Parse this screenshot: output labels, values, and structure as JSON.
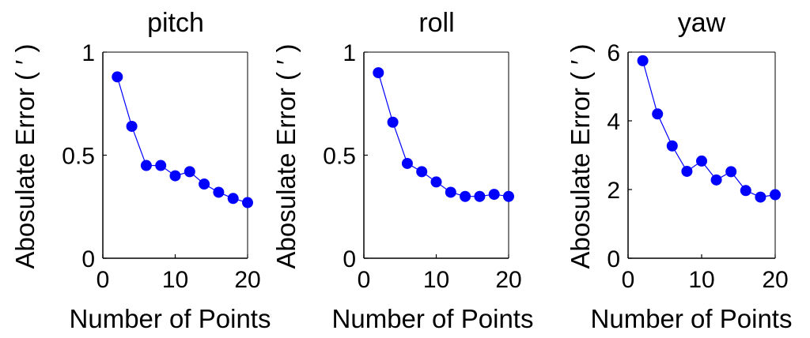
{
  "chart_data": [
    {
      "type": "line",
      "title": "pitch",
      "xlabel": "Number of Points",
      "ylabel": "Abosulate Error ( ′ )",
      "xlim": [
        0,
        20
      ],
      "ylim": [
        0,
        1
      ],
      "xticks": [
        0,
        10,
        20
      ],
      "yticks": [
        0,
        0.5,
        1
      ],
      "xtick_labels": [
        "0",
        "10",
        "20"
      ],
      "ytick_labels": [
        "0",
        "0.5",
        "1"
      ],
      "grid": false,
      "color": "#0000ff",
      "x": [
        2,
        4,
        6,
        8,
        10,
        12,
        14,
        16,
        18,
        20
      ],
      "y": [
        0.88,
        0.64,
        0.45,
        0.45,
        0.4,
        0.42,
        0.36,
        0.32,
        0.29,
        0.27
      ]
    },
    {
      "type": "line",
      "title": "roll",
      "xlabel": "Number of Points",
      "ylabel": "Abosulate Error ( ′ )",
      "xlim": [
        0,
        20
      ],
      "ylim": [
        0,
        1
      ],
      "xticks": [
        0,
        10,
        20
      ],
      "yticks": [
        0,
        0.5,
        1
      ],
      "xtick_labels": [
        "0",
        "10",
        "20"
      ],
      "ytick_labels": [
        "0",
        "0.5",
        "1"
      ],
      "grid": false,
      "color": "#0000ff",
      "x": [
        2,
        4,
        6,
        8,
        10,
        12,
        14,
        16,
        18,
        20
      ],
      "y": [
        0.9,
        0.66,
        0.46,
        0.42,
        0.37,
        0.32,
        0.3,
        0.3,
        0.31,
        0.3
      ]
    },
    {
      "type": "line",
      "title": "yaw",
      "xlabel": "Number of Points",
      "ylabel": "Abosulate Error ( ′ )",
      "xlim": [
        0,
        20
      ],
      "ylim": [
        0,
        6
      ],
      "xticks": [
        0,
        10,
        20
      ],
      "yticks": [
        0,
        2,
        4,
        6
      ],
      "xtick_labels": [
        "0",
        "10",
        "20"
      ],
      "ytick_labels": [
        "0",
        "2",
        "4",
        "6"
      ],
      "grid": false,
      "color": "#0000ff",
      "x": [
        2,
        4,
        6,
        8,
        10,
        12,
        14,
        16,
        18,
        20
      ],
      "y": [
        5.75,
        4.2,
        3.27,
        2.53,
        2.83,
        2.28,
        2.52,
        1.97,
        1.78,
        1.85
      ]
    }
  ]
}
